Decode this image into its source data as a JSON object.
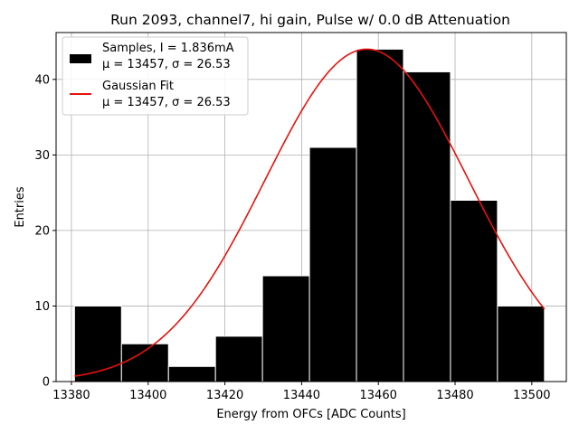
{
  "chart_data": {
    "type": "bar",
    "title": "Run 2093, channel7, hi gain, Pulse w/ 0.0 dB Attenuation",
    "xlabel": "Energy from OFCs [ADC Counts]",
    "ylabel": "Entries",
    "xlim": [
      13376,
      13509
    ],
    "ylim": [
      0,
      46.2
    ],
    "xticks": [
      13380,
      13400,
      13420,
      13440,
      13460,
      13480,
      13500
    ],
    "yticks": [
      0,
      10,
      20,
      30,
      40
    ],
    "grid": true,
    "bin_edges": [
      13380.8,
      13393.05,
      13405.3,
      13417.55,
      13429.8,
      13442.05,
      13454.3,
      13466.55,
      13478.8,
      13491.05,
      13503.3
    ],
    "counts": [
      10,
      5,
      2,
      6,
      14,
      31,
      44,
      41,
      24,
      10
    ],
    "bar_color": "#000000",
    "bar_edge_color": "#ffffff",
    "fit": {
      "mu": 13457,
      "sigma": 26.53,
      "amplitude": 44,
      "x_range": [
        13380.8,
        13503.3
      ],
      "color": "#e8120c"
    },
    "legend": {
      "location": "upper-left",
      "entries": [
        {
          "kind": "bar",
          "label_line1": "Samples, I = 1.836mA",
          "label_line2": "μ = 13457, σ = 26.53"
        },
        {
          "kind": "line",
          "label_line1": "Gaussian Fit",
          "label_line2": "μ = 13457, σ = 26.53"
        }
      ]
    }
  }
}
